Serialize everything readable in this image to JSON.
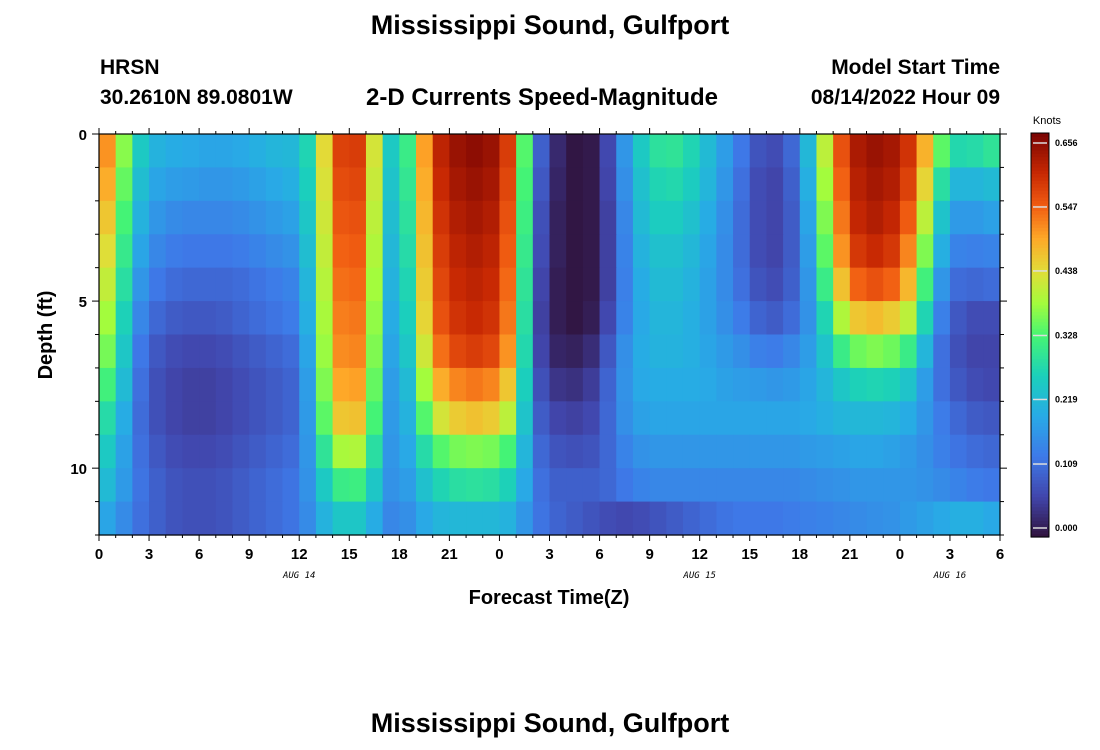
{
  "header": {
    "title": "Mississippi Sound, Gulfport",
    "station_code": "HRSN",
    "station_coords": "30.2610N  89.0801W",
    "subtitle": "2-D Currents Speed-Magnitude",
    "model_start_label": "Model Start Time",
    "model_start_value": "08/14/2022 Hour 09"
  },
  "footer": {
    "title": "Mississippi Sound, Gulfport"
  },
  "chart_data": {
    "type": "heatmap",
    "title": "2-D Currents Speed-Magnitude",
    "xlabel": "Forecast Time(Z)",
    "ylabel": "Depth (ft)",
    "x_ticks": [
      "0",
      "3",
      "6",
      "9",
      "12",
      "15",
      "18",
      "21",
      "0",
      "3",
      "6",
      "9",
      "12",
      "15",
      "18",
      "21",
      "0",
      "3",
      "6"
    ],
    "x_date_labels": [
      {
        "label": "AUG 14",
        "at_tick": 4
      },
      {
        "label": "AUG 15",
        "at_tick": 12
      },
      {
        "label": "AUG 16",
        "at_tick": 17
      }
    ],
    "x_range_hours": [
      0,
      54
    ],
    "y_ticks": [
      "0",
      "5",
      "10"
    ],
    "y_range_ft": [
      0,
      12
    ],
    "colorbar": {
      "unit": "Knots",
      "ticks": [
        "0.656",
        "0.547",
        "0.438",
        "0.328",
        "0.219",
        "0.109",
        "0.000"
      ],
      "range": [
        0,
        0.656
      ]
    },
    "depth_levels_ft": [
      0.5,
      1.5,
      2.5,
      3.5,
      4.5,
      5.5,
      6.5,
      7.5,
      8.5,
      9.5,
      10.5,
      11.5
    ],
    "surface_speed_profile": {
      "hours": [
        0,
        1,
        2,
        3,
        4,
        5,
        6,
        7,
        8,
        9,
        10,
        11,
        12,
        13,
        14,
        15,
        16,
        17,
        18,
        19,
        20,
        21,
        22,
        23,
        24,
        25,
        26,
        27,
        28,
        29,
        30,
        31,
        32,
        33,
        34,
        35,
        36,
        37,
        38,
        39,
        40,
        41,
        42,
        43,
        44,
        45,
        46,
        47,
        48,
        49,
        50,
        51,
        52,
        53,
        54
      ],
      "knots": [
        0.55,
        0.45,
        0.28,
        0.22,
        0.2,
        0.2,
        0.19,
        0.19,
        0.19,
        0.2,
        0.21,
        0.22,
        0.22,
        0.32,
        0.55,
        0.58,
        0.56,
        0.28,
        0.22,
        0.4,
        0.58,
        0.62,
        0.64,
        0.64,
        0.62,
        0.52,
        0.15,
        0.05,
        0.01,
        0.0,
        0.02,
        0.12,
        0.22,
        0.28,
        0.3,
        0.29,
        0.25,
        0.2,
        0.16,
        0.1,
        0.07,
        0.08,
        0.14,
        0.3,
        0.5,
        0.6,
        0.63,
        0.63,
        0.61,
        0.55,
        0.4,
        0.28,
        0.27,
        0.29,
        0.3
      ]
    },
    "speed_knots_by_depth": {
      "note_hours": "rows correspond to depth_levels_ft; columns to surface_speed_profile.hours",
      "rows": [
        [
          0.55,
          0.45,
          0.28,
          0.22,
          0.2,
          0.2,
          0.19,
          0.19,
          0.19,
          0.2,
          0.21,
          0.22,
          0.22,
          0.32,
          0.55,
          0.58,
          0.56,
          0.28,
          0.22,
          0.4,
          0.58,
          0.62,
          0.64,
          0.64,
          0.62,
          0.52,
          0.15,
          0.05,
          0.01,
          0.0,
          0.02,
          0.12,
          0.22,
          0.28,
          0.3,
          0.29,
          0.25,
          0.2,
          0.16,
          0.1,
          0.07,
          0.08,
          0.14,
          0.3,
          0.5,
          0.6,
          0.63,
          0.63,
          0.61,
          0.55,
          0.4,
          0.28,
          0.27,
          0.29,
          0.3
        ],
        [
          0.53,
          0.43,
          0.26,
          0.2,
          0.18,
          0.18,
          0.17,
          0.17,
          0.17,
          0.18,
          0.19,
          0.2,
          0.21,
          0.31,
          0.54,
          0.57,
          0.55,
          0.27,
          0.21,
          0.39,
          0.57,
          0.61,
          0.63,
          0.63,
          0.61,
          0.51,
          0.14,
          0.04,
          0.01,
          0.0,
          0.02,
          0.11,
          0.21,
          0.26,
          0.28,
          0.27,
          0.24,
          0.19,
          0.15,
          0.09,
          0.06,
          0.07,
          0.13,
          0.28,
          0.48,
          0.59,
          0.62,
          0.62,
          0.6,
          0.53,
          0.35,
          0.22,
          0.21,
          0.22,
          0.23
        ],
        [
          0.5,
          0.41,
          0.24,
          0.18,
          0.16,
          0.15,
          0.15,
          0.15,
          0.15,
          0.16,
          0.17,
          0.18,
          0.19,
          0.3,
          0.53,
          0.56,
          0.54,
          0.26,
          0.2,
          0.38,
          0.56,
          0.6,
          0.62,
          0.62,
          0.6,
          0.5,
          0.13,
          0.03,
          0.01,
          0.0,
          0.02,
          0.1,
          0.2,
          0.25,
          0.26,
          0.25,
          0.22,
          0.18,
          0.14,
          0.09,
          0.06,
          0.07,
          0.12,
          0.26,
          0.46,
          0.58,
          0.61,
          0.61,
          0.58,
          0.5,
          0.3,
          0.18,
          0.17,
          0.18,
          0.19
        ],
        [
          0.47,
          0.39,
          0.22,
          0.16,
          0.14,
          0.13,
          0.13,
          0.13,
          0.13,
          0.14,
          0.15,
          0.16,
          0.17,
          0.29,
          0.52,
          0.55,
          0.53,
          0.25,
          0.19,
          0.37,
          0.55,
          0.59,
          0.61,
          0.61,
          0.59,
          0.49,
          0.12,
          0.03,
          0.01,
          0.0,
          0.02,
          0.1,
          0.19,
          0.23,
          0.24,
          0.23,
          0.21,
          0.17,
          0.14,
          0.09,
          0.06,
          0.07,
          0.12,
          0.24,
          0.44,
          0.56,
          0.59,
          0.59,
          0.56,
          0.46,
          0.26,
          0.15,
          0.14,
          0.14,
          0.15
        ],
        [
          0.44,
          0.37,
          0.2,
          0.14,
          0.12,
          0.11,
          0.11,
          0.11,
          0.11,
          0.12,
          0.13,
          0.14,
          0.15,
          0.28,
          0.51,
          0.54,
          0.52,
          0.24,
          0.18,
          0.36,
          0.54,
          0.58,
          0.6,
          0.6,
          0.58,
          0.48,
          0.11,
          0.02,
          0.01,
          0.0,
          0.02,
          0.1,
          0.18,
          0.22,
          0.23,
          0.22,
          0.2,
          0.17,
          0.14,
          0.1,
          0.07,
          0.08,
          0.12,
          0.22,
          0.4,
          0.52,
          0.55,
          0.55,
          0.52,
          0.42,
          0.22,
          0.12,
          0.11,
          0.11,
          0.12
        ],
        [
          0.41,
          0.35,
          0.18,
          0.12,
          0.1,
          0.09,
          0.09,
          0.09,
          0.1,
          0.11,
          0.12,
          0.13,
          0.14,
          0.27,
          0.5,
          0.53,
          0.51,
          0.23,
          0.17,
          0.35,
          0.53,
          0.57,
          0.59,
          0.59,
          0.57,
          0.47,
          0.1,
          0.02,
          0.01,
          0.0,
          0.03,
          0.11,
          0.18,
          0.21,
          0.22,
          0.21,
          0.2,
          0.17,
          0.15,
          0.12,
          0.09,
          0.1,
          0.13,
          0.2,
          0.34,
          0.44,
          0.47,
          0.46,
          0.44,
          0.36,
          0.18,
          0.1,
          0.08,
          0.07,
          0.08
        ],
        [
          0.38,
          0.33,
          0.16,
          0.1,
          0.08,
          0.07,
          0.07,
          0.07,
          0.08,
          0.09,
          0.1,
          0.11,
          0.12,
          0.26,
          0.49,
          0.52,
          0.5,
          0.22,
          0.16,
          0.33,
          0.5,
          0.55,
          0.57,
          0.57,
          0.55,
          0.45,
          0.1,
          0.03,
          0.02,
          0.02,
          0.05,
          0.13,
          0.19,
          0.21,
          0.21,
          0.21,
          0.2,
          0.18,
          0.17,
          0.15,
          0.13,
          0.14,
          0.16,
          0.2,
          0.28,
          0.34,
          0.36,
          0.36,
          0.34,
          0.28,
          0.15,
          0.09,
          0.07,
          0.06,
          0.07
        ],
        [
          0.34,
          0.3,
          0.15,
          0.09,
          0.07,
          0.06,
          0.06,
          0.06,
          0.07,
          0.08,
          0.09,
          0.1,
          0.11,
          0.25,
          0.47,
          0.5,
          0.48,
          0.21,
          0.15,
          0.3,
          0.46,
          0.5,
          0.52,
          0.52,
          0.5,
          0.41,
          0.11,
          0.05,
          0.04,
          0.04,
          0.07,
          0.14,
          0.19,
          0.2,
          0.2,
          0.2,
          0.2,
          0.19,
          0.18,
          0.18,
          0.17,
          0.17,
          0.18,
          0.2,
          0.23,
          0.26,
          0.27,
          0.27,
          0.26,
          0.22,
          0.14,
          0.1,
          0.08,
          0.07,
          0.07
        ],
        [
          0.3,
          0.26,
          0.14,
          0.09,
          0.07,
          0.06,
          0.06,
          0.06,
          0.07,
          0.08,
          0.09,
          0.1,
          0.11,
          0.24,
          0.44,
          0.47,
          0.45,
          0.2,
          0.15,
          0.27,
          0.4,
          0.44,
          0.46,
          0.46,
          0.44,
          0.36,
          0.12,
          0.07,
          0.06,
          0.06,
          0.08,
          0.14,
          0.18,
          0.19,
          0.19,
          0.19,
          0.19,
          0.19,
          0.19,
          0.19,
          0.19,
          0.19,
          0.19,
          0.2,
          0.21,
          0.22,
          0.22,
          0.22,
          0.21,
          0.19,
          0.15,
          0.12,
          0.1,
          0.09,
          0.09
        ],
        [
          0.27,
          0.23,
          0.14,
          0.1,
          0.08,
          0.07,
          0.07,
          0.07,
          0.08,
          0.09,
          0.1,
          0.11,
          0.12,
          0.22,
          0.37,
          0.4,
          0.38,
          0.19,
          0.15,
          0.24,
          0.32,
          0.35,
          0.36,
          0.36,
          0.35,
          0.3,
          0.13,
          0.09,
          0.08,
          0.08,
          0.09,
          0.13,
          0.16,
          0.17,
          0.17,
          0.17,
          0.17,
          0.17,
          0.17,
          0.17,
          0.17,
          0.17,
          0.17,
          0.18,
          0.18,
          0.19,
          0.19,
          0.19,
          0.18,
          0.17,
          0.15,
          0.13,
          0.12,
          0.11,
          0.11
        ],
        [
          0.24,
          0.21,
          0.14,
          0.11,
          0.09,
          0.08,
          0.08,
          0.08,
          0.09,
          0.1,
          0.11,
          0.12,
          0.13,
          0.2,
          0.3,
          0.32,
          0.31,
          0.18,
          0.15,
          0.21,
          0.26,
          0.28,
          0.29,
          0.29,
          0.28,
          0.25,
          0.14,
          0.1,
          0.1,
          0.1,
          0.1,
          0.12,
          0.14,
          0.15,
          0.15,
          0.15,
          0.15,
          0.15,
          0.15,
          0.15,
          0.15,
          0.15,
          0.15,
          0.16,
          0.16,
          0.17,
          0.17,
          0.17,
          0.17,
          0.17,
          0.16,
          0.15,
          0.14,
          0.13,
          0.13
        ],
        [
          0.2,
          0.18,
          0.13,
          0.11,
          0.09,
          0.08,
          0.08,
          0.08,
          0.09,
          0.1,
          0.11,
          0.12,
          0.13,
          0.18,
          0.24,
          0.25,
          0.24,
          0.16,
          0.14,
          0.18,
          0.21,
          0.22,
          0.22,
          0.22,
          0.22,
          0.2,
          0.14,
          0.11,
          0.1,
          0.09,
          0.08,
          0.07,
          0.07,
          0.08,
          0.09,
          0.1,
          0.11,
          0.12,
          0.13,
          0.13,
          0.13,
          0.13,
          0.14,
          0.14,
          0.15,
          0.15,
          0.16,
          0.16,
          0.17,
          0.18,
          0.19,
          0.2,
          0.21,
          0.2,
          0.19
        ]
      ]
    }
  }
}
